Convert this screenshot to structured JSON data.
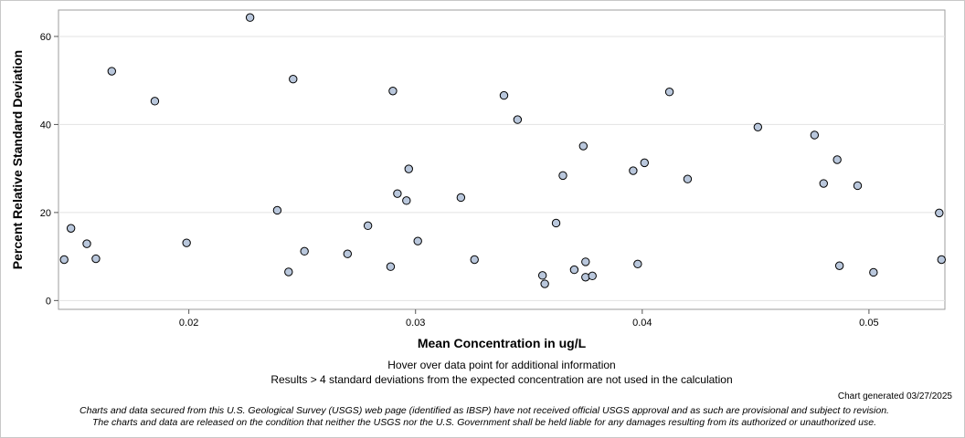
{
  "chart_data": {
    "type": "scatter",
    "xlabel": "Mean Concentration in ug/L",
    "ylabel": "Percent Relative Standard Deviation",
    "xlim": [
      0.01425,
      0.05335
    ],
    "ylim": [
      -2.0,
      66.0
    ],
    "x_ticks": [
      0.02,
      0.03,
      0.04,
      0.05
    ],
    "x_tick_labels": [
      "0.02",
      "0.03",
      "0.04",
      "0.05"
    ],
    "y_ticks": [
      0,
      20,
      40,
      60
    ],
    "y_tick_labels": [
      "0",
      "20",
      "40",
      "60"
    ],
    "grid": "horizontal",
    "marker_color": "#b9c7dc",
    "marker_edge": "#000000",
    "points": [
      {
        "x": 0.0145,
        "y": 9.3
      },
      {
        "x": 0.0148,
        "y": 16.4
      },
      {
        "x": 0.0155,
        "y": 12.9
      },
      {
        "x": 0.0159,
        "y": 9.5
      },
      {
        "x": 0.0166,
        "y": 52.1
      },
      {
        "x": 0.0185,
        "y": 45.3
      },
      {
        "x": 0.0199,
        "y": 13.1
      },
      {
        "x": 0.0227,
        "y": 64.3
      },
      {
        "x": 0.0239,
        "y": 20.5
      },
      {
        "x": 0.0244,
        "y": 6.5
      },
      {
        "x": 0.0246,
        "y": 50.3
      },
      {
        "x": 0.0251,
        "y": 11.2
      },
      {
        "x": 0.027,
        "y": 10.6
      },
      {
        "x": 0.0279,
        "y": 17.0
      },
      {
        "x": 0.0289,
        "y": 7.7
      },
      {
        "x": 0.029,
        "y": 47.6
      },
      {
        "x": 0.0292,
        "y": 24.3
      },
      {
        "x": 0.0296,
        "y": 22.7
      },
      {
        "x": 0.0297,
        "y": 29.9
      },
      {
        "x": 0.0301,
        "y": 13.5
      },
      {
        "x": 0.032,
        "y": 23.4
      },
      {
        "x": 0.0326,
        "y": 9.3
      },
      {
        "x": 0.0339,
        "y": 46.6
      },
      {
        "x": 0.0345,
        "y": 41.1
      },
      {
        "x": 0.0356,
        "y": 5.7
      },
      {
        "x": 0.0357,
        "y": 3.8
      },
      {
        "x": 0.0362,
        "y": 17.6
      },
      {
        "x": 0.0365,
        "y": 28.4
      },
      {
        "x": 0.037,
        "y": 7.0
      },
      {
        "x": 0.0374,
        "y": 35.1
      },
      {
        "x": 0.0375,
        "y": 8.8
      },
      {
        "x": 0.0375,
        "y": 5.3
      },
      {
        "x": 0.0378,
        "y": 5.6
      },
      {
        "x": 0.0396,
        "y": 29.5
      },
      {
        "x": 0.0398,
        "y": 8.3
      },
      {
        "x": 0.0401,
        "y": 31.3
      },
      {
        "x": 0.0412,
        "y": 47.4
      },
      {
        "x": 0.042,
        "y": 27.6
      },
      {
        "x": 0.0451,
        "y": 39.4
      },
      {
        "x": 0.0476,
        "y": 37.6
      },
      {
        "x": 0.048,
        "y": 26.6
      },
      {
        "x": 0.0486,
        "y": 32.0
      },
      {
        "x": 0.0487,
        "y": 7.9
      },
      {
        "x": 0.0495,
        "y": 26.1
      },
      {
        "x": 0.0502,
        "y": 6.4
      },
      {
        "x": 0.0531,
        "y": 19.9
      },
      {
        "x": 0.0532,
        "y": 9.3
      }
    ]
  },
  "notes": {
    "hover": "Hover over data point for additional information",
    "results": "Results > 4 standard deviations from the expected concentration are not used in the calculation",
    "generated": "Chart generated 03/27/2025",
    "disclaimer_line1": "Charts and data secured from this U.S. Geological Survey (USGS) web page (identified as IBSP) have not received official USGS approval and as such are provisional and subject to revision.",
    "disclaimer_line2": "The charts and data are released on the condition that neither the USGS nor the U.S. Government shall be held liable for any damages resulting from its authorized or unauthorized use."
  }
}
